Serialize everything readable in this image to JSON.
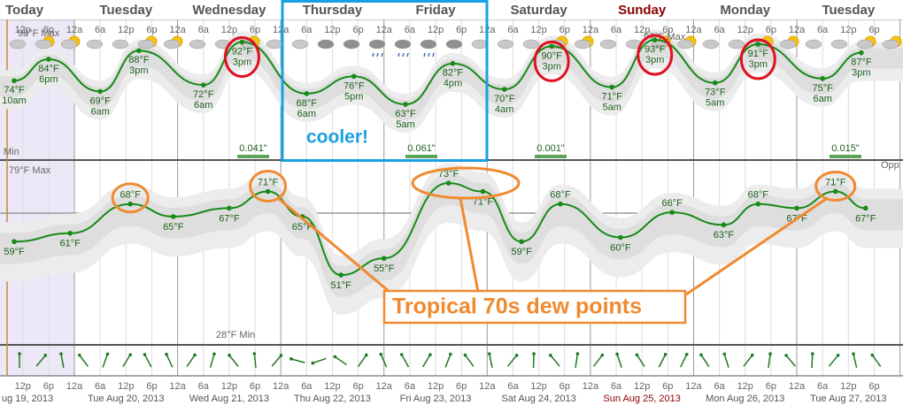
{
  "header": {
    "days": [
      "Today",
      "Tuesday",
      "Wednesday",
      "Thursday",
      "Friday",
      "Saturday",
      "Sunday",
      "Monday",
      "Tuesday"
    ]
  },
  "hour_labels": [
    "12a",
    "6a",
    "12p",
    "6p"
  ],
  "dates": [
    "ug 19, 2013",
    "Tue Aug 20, 2013",
    "Wed Aug 21, 2013",
    "Thu Aug 22, 2013",
    "Fri Aug 23, 2013",
    "Sat Aug 24, 2013",
    "Sun Aug 25, 2013",
    "Mon Aug 26, 2013",
    "Tue Aug 27, 2013"
  ],
  "chart_data": [
    {
      "type": "line",
      "x": [
        10,
        18,
        30,
        39,
        54,
        63,
        78,
        89,
        101,
        112,
        124,
        135,
        149,
        159,
        173,
        183,
        198,
        207
      ],
      "values": [
        74,
        84,
        69,
        88,
        72,
        92,
        68,
        76,
        63,
        82,
        70,
        90,
        71,
        93,
        73,
        91,
        75,
        87
      ],
      "value_labels": [
        "74°F",
        "84°F",
        "69°F",
        "88°F",
        "72°F",
        "92°F",
        "68°F",
        "76°F",
        "63°F",
        "82°F",
        "70°F",
        "90°F",
        "71°F",
        "93°F",
        "73°F",
        "91°F",
        "75°F",
        "87°F"
      ],
      "time_labels": [
        "10am",
        "6pm",
        "6am",
        "3pm",
        "6am",
        "3pm",
        "6am",
        "5pm",
        "5am",
        "4pm",
        "4am",
        "3pm",
        "5am",
        "3pm",
        "5am",
        "3pm",
        "6am",
        "3pm"
      ],
      "color": "#168a16",
      "xlim": [
        6.7,
        216.7
      ],
      "ylim": [
        37.5,
        102.5
      ],
      "max_label": "98°F Max",
      "max_label_2": "97°F Max",
      "min_label": "Min",
      "precip_labels": [
        "0.041\"",
        "0.061\"",
        "0.001\"",
        "0.015\""
      ],
      "annotation": "cooler!"
    },
    {
      "type": "line",
      "x": [
        10,
        23,
        37,
        47,
        60,
        69,
        77,
        86,
        96,
        111,
        119,
        128,
        137,
        151,
        163,
        175,
        183,
        192,
        201,
        208
      ],
      "values": [
        59,
        61,
        68,
        65,
        67,
        71,
        65,
        51,
        55,
        73,
        71,
        59,
        68,
        60,
        66,
        63,
        68,
        67,
        71,
        67
      ],
      "value_labels": [
        "59°F",
        "61°F",
        "68°F",
        "65°F",
        "67°F",
        "71°F",
        "65°F",
        "51°F",
        "55°F",
        "73°F",
        "71°F",
        "59°F",
        "68°F",
        "60°F",
        "66°F",
        "63°F",
        "68°F",
        "67°F",
        "71°F",
        "67°F"
      ],
      "color": "#168a16",
      "xlim": [
        6.7,
        216.7
      ],
      "ylim": [
        34.3,
        78.3
      ],
      "max_label": "79°F Max",
      "min_label": "28°F Min",
      "corner_label": "Opp",
      "annotation": "Tropical 70s dew points"
    }
  ]
}
